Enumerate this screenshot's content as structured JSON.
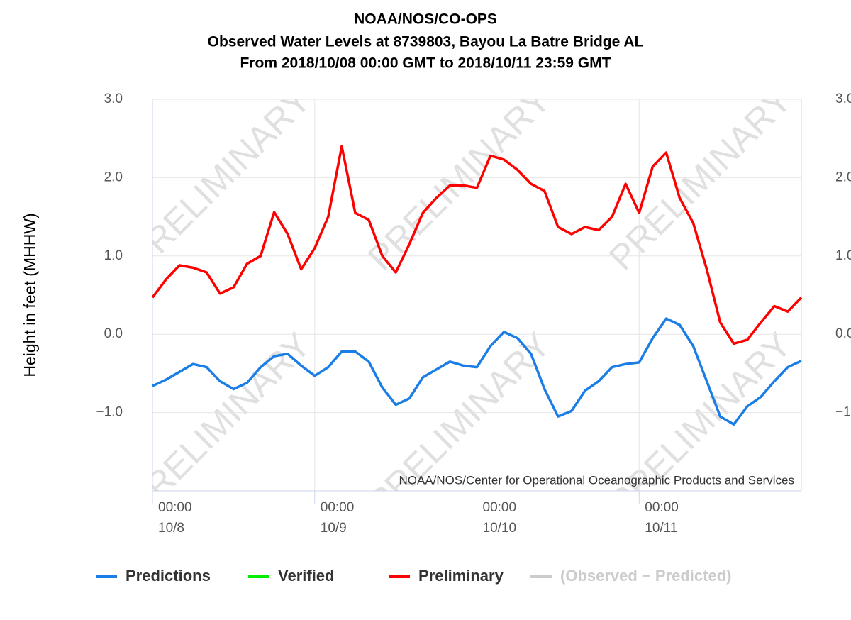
{
  "chart_data": {
    "type": "line",
    "title": [
      "NOAA/NOS/CO-OPS",
      "Observed Water Levels at 8739803, Bayou La Batre Bridge AL",
      "From 2018/10/08 00:00 GMT to 2018/10/11 23:59 GMT"
    ],
    "y_label": "Height in feet (MHHW)",
    "credit": "NOAA/NOS/Center for Operational Oceanographic Products and Services",
    "watermark": "PRELIMINARY",
    "x": [
      0,
      2,
      4,
      6,
      8,
      10,
      12,
      14,
      16,
      18,
      20,
      22,
      24,
      26,
      28,
      30,
      32,
      34,
      36,
      38,
      40,
      42,
      44,
      46,
      48,
      50,
      52,
      54,
      56,
      58,
      60,
      62,
      64,
      66,
      68,
      70,
      72,
      74,
      76,
      78,
      80,
      82,
      84,
      86,
      88,
      90,
      92,
      94,
      96
    ],
    "xlim": [
      0,
      96
    ],
    "xticks": [
      {
        "value": 0,
        "label": [
          "00:00",
          "10/8"
        ]
      },
      {
        "value": 24,
        "label": [
          "00:00",
          "10/9"
        ]
      },
      {
        "value": 48,
        "label": [
          "00:00",
          "10/10"
        ]
      },
      {
        "value": 72,
        "label": [
          "00:00",
          "10/11"
        ]
      }
    ],
    "ylim": [
      -2,
      3
    ],
    "yticks": [
      {
        "value": -1,
        "label": "−1.0"
      },
      {
        "value": 0,
        "label": "0.0"
      },
      {
        "value": 1,
        "label": "1.0"
      },
      {
        "value": 2,
        "label": "2.0"
      },
      {
        "value": 3,
        "label": "3.0"
      }
    ],
    "grid": true,
    "series": [
      {
        "name": "Predictions",
        "color": "#1a7ee6",
        "values": [
          -0.66,
          -0.58,
          -0.48,
          -0.38,
          -0.42,
          -0.6,
          -0.7,
          -0.62,
          -0.42,
          -0.28,
          -0.25,
          -0.4,
          -0.53,
          -0.42,
          -0.22,
          -0.22,
          -0.35,
          -0.68,
          -0.9,
          -0.82,
          -0.55,
          -0.45,
          -0.35,
          -0.4,
          -0.42,
          -0.15,
          0.03,
          -0.05,
          -0.25,
          -0.7,
          -1.05,
          -0.98,
          -0.72,
          -0.6,
          -0.42,
          -0.38,
          -0.36,
          -0.05,
          0.2,
          0.12,
          -0.15,
          -0.6,
          -1.05,
          -1.15,
          -0.92,
          -0.8,
          -0.6,
          -0.42,
          -0.34
        ]
      },
      {
        "name": "Verified",
        "color": "#00ee00",
        "values": [
          null,
          null,
          null,
          null,
          null,
          null,
          null,
          null,
          null,
          null,
          null,
          null,
          null,
          null,
          null,
          null,
          null,
          null,
          null,
          null,
          null,
          null,
          null,
          null,
          null,
          null,
          null,
          null,
          null,
          null,
          null,
          null,
          null,
          null,
          null,
          null,
          null,
          null,
          null,
          null,
          null,
          null,
          null,
          null,
          null,
          null,
          null,
          null,
          null
        ]
      },
      {
        "name": "Preliminary",
        "color": "#ff0000",
        "values": [
          0.47,
          0.7,
          0.88,
          0.85,
          0.79,
          0.52,
          0.6,
          0.9,
          1.0,
          1.56,
          1.28,
          0.83,
          1.1,
          1.5,
          2.4,
          1.55,
          1.46,
          1.0,
          0.79,
          1.15,
          1.55,
          1.74,
          1.9,
          1.9,
          1.87,
          2.28,
          2.23,
          2.1,
          1.92,
          1.83,
          1.37,
          1.28,
          1.37,
          1.33,
          1.5,
          1.92,
          1.55,
          2.14,
          2.32,
          1.74,
          1.42,
          0.83,
          0.15,
          -0.12,
          -0.07,
          0.15,
          0.36,
          0.29,
          0.47
        ]
      },
      {
        "name": "(Observed − Predicted)",
        "color": "#cccccc",
        "values": [
          null,
          null,
          null,
          null,
          null,
          null,
          null,
          null,
          null,
          null,
          null,
          null,
          null,
          null,
          null,
          null,
          null,
          null,
          null,
          null,
          null,
          null,
          null,
          null,
          null,
          null,
          null,
          null,
          null,
          null,
          null,
          null,
          null,
          null,
          null,
          null,
          null,
          null,
          null,
          null,
          null,
          null,
          null,
          null,
          null,
          null,
          null,
          null,
          null
        ]
      }
    ]
  }
}
